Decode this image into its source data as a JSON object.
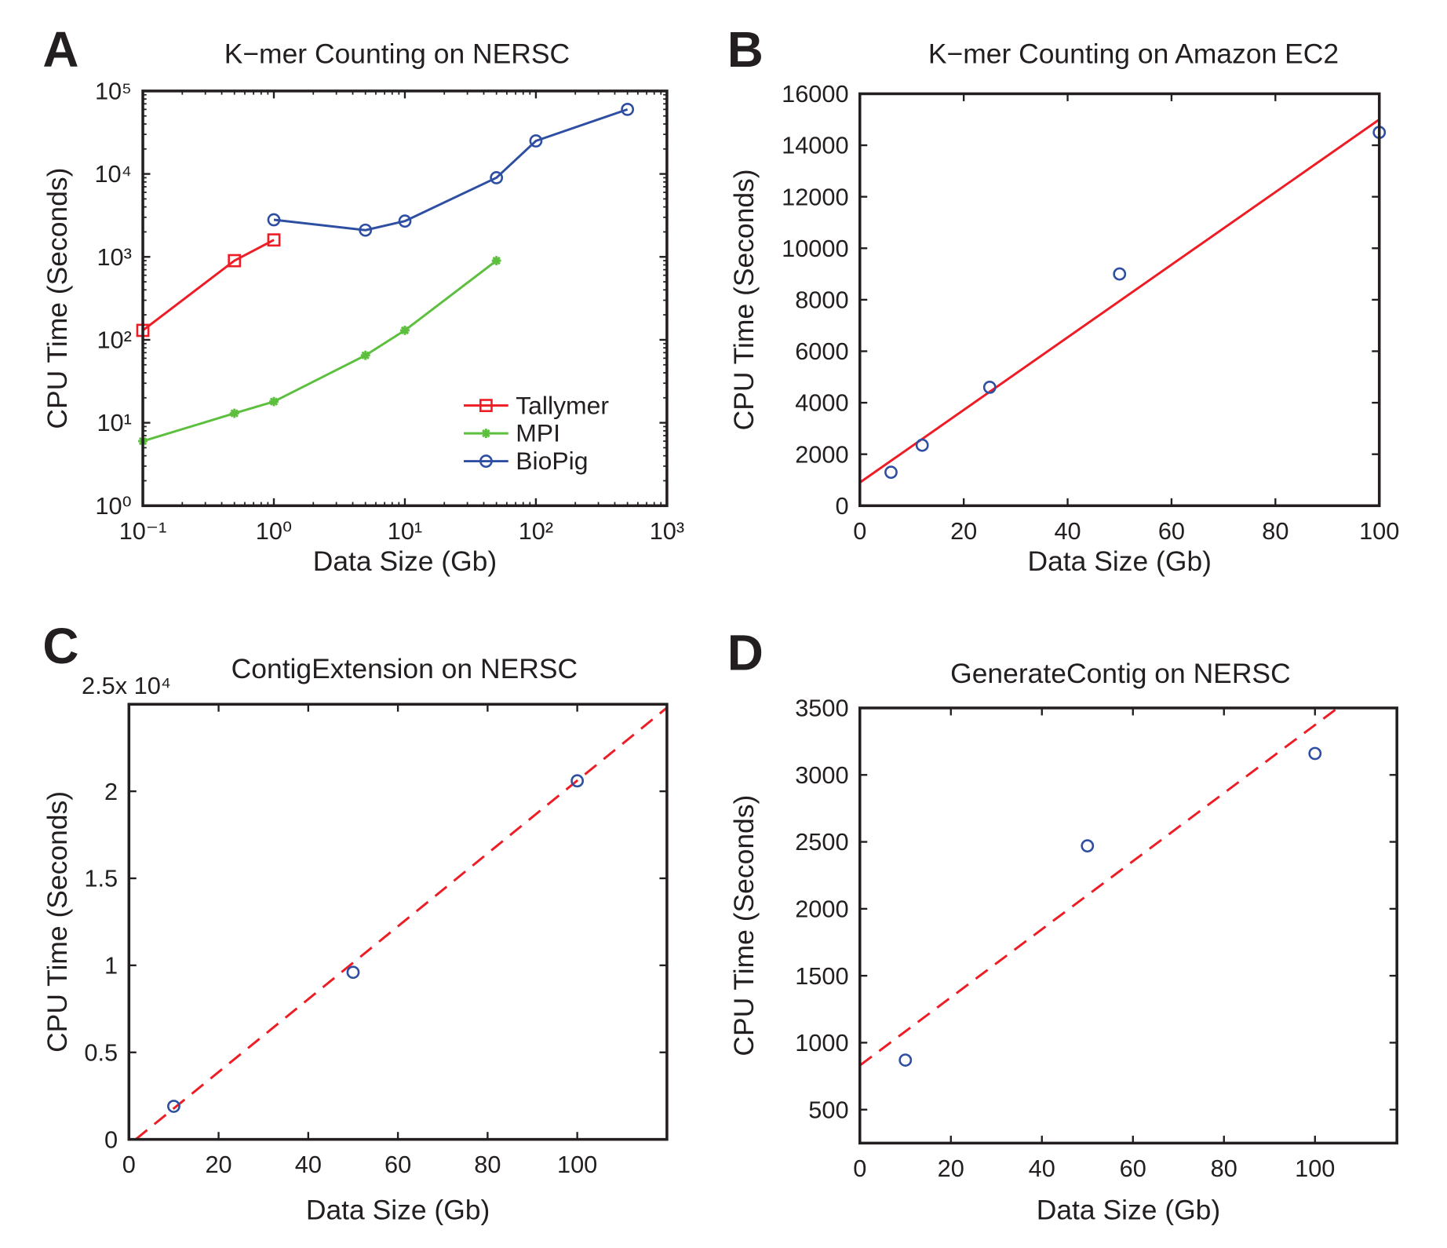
{
  "colors": {
    "red": "#ee1c24",
    "green": "#5cbf3d",
    "blue": "#2e4ea2",
    "axis": "#231f20"
  },
  "chart_data": [
    {
      "panel": "A",
      "type": "line",
      "title": "K−mer Counting on NERSC",
      "xlabel": "Data Size (Gb)",
      "ylabel": "CPU Time (Seconds)",
      "xscale": "log",
      "yscale": "log",
      "xlim": [
        0.1,
        1000
      ],
      "ylim": [
        1,
        100000
      ],
      "xticks": [
        0.1,
        1,
        10,
        100,
        1000
      ],
      "xticklabels": [
        "10⁻¹",
        "10⁰",
        "10¹",
        "10²",
        "10³"
      ],
      "yticks": [
        1,
        10,
        100,
        1000,
        10000,
        100000
      ],
      "yticklabels": [
        "10⁰",
        "10¹",
        "10²",
        "10³",
        "10⁴",
        "10⁵"
      ],
      "grid": false,
      "legend": "bottom-right",
      "series": [
        {
          "name": "Tallymer",
          "color": "#ee1c24",
          "marker": "square",
          "x": [
            0.1,
            0.5,
            1
          ],
          "y": [
            130,
            900,
            1600
          ]
        },
        {
          "name": "MPI",
          "color": "#5cbf3d",
          "marker": "asterisk",
          "x": [
            0.1,
            0.5,
            1,
            5,
            10,
            50
          ],
          "y": [
            6,
            13,
            18,
            65,
            130,
            900
          ]
        },
        {
          "name": "BioPig",
          "color": "#2e4ea2",
          "marker": "circle",
          "x": [
            1,
            5,
            10,
            50,
            100,
            500
          ],
          "y": [
            2800,
            2100,
            2700,
            9000,
            25000,
            60000
          ]
        }
      ]
    },
    {
      "panel": "B",
      "type": "scatter",
      "title": "K−mer Counting on Amazon EC2",
      "xlabel": "Data Size (Gb)",
      "ylabel": "CPU Time (Seconds)",
      "xscale": "linear",
      "yscale": "linear",
      "xlim": [
        0,
        100
      ],
      "ylim": [
        0,
        16000
      ],
      "xticks": [
        0,
        20,
        40,
        60,
        80,
        100
      ],
      "xticklabels": [
        "0",
        "20",
        "40",
        "60",
        "80",
        "100"
      ],
      "yticks": [
        0,
        2000,
        4000,
        6000,
        8000,
        10000,
        12000,
        14000,
        16000
      ],
      "yticklabels": [
        "0",
        "2000",
        "4000",
        "6000",
        "8000",
        "10000",
        "12000",
        "14000",
        "16000"
      ],
      "grid": false,
      "points": {
        "color": "#2e4ea2",
        "x": [
          6,
          12,
          25,
          50,
          100
        ],
        "y": [
          1300,
          2350,
          4600,
          9000,
          14500
        ]
      },
      "fit": {
        "color": "#ee1c24",
        "style": "solid",
        "x": [
          0,
          100
        ],
        "y": [
          900,
          15000
        ]
      }
    },
    {
      "panel": "C",
      "type": "scatter",
      "title": "ContigExtension on NERSC",
      "xlabel": "Data Size (Gb)",
      "ylabel": "CPU Time (Seconds)",
      "xscale": "linear",
      "yscale": "linear",
      "xlim": [
        0,
        120
      ],
      "ylim": [
        0,
        25000
      ],
      "xticks": [
        0,
        20,
        40,
        60,
        80,
        100
      ],
      "xticklabels": [
        "0",
        "20",
        "40",
        "60",
        "80",
        "100"
      ],
      "yticks": [
        0,
        5000,
        10000,
        15000,
        20000
      ],
      "yticklabels": [
        "0",
        "0.5",
        "1",
        "1.5",
        "2"
      ],
      "yexponent_label": "2.5x 10⁴",
      "grid": false,
      "points": {
        "color": "#2e4ea2",
        "x": [
          10,
          50,
          100
        ],
        "y": [
          1900,
          9600,
          20600
        ]
      },
      "fit": {
        "color": "#ee1c24",
        "style": "dashed",
        "x": [
          1.5,
          120
        ],
        "y": [
          0,
          24800
        ]
      }
    },
    {
      "panel": "D",
      "type": "scatter",
      "title": "GenerateContig on NERSC",
      "xlabel": "Data Size (Gb)",
      "ylabel": "CPU Time (Seconds)",
      "xscale": "linear",
      "yscale": "linear",
      "xlim": [
        0,
        118
      ],
      "ylim": [
        250,
        3500
      ],
      "xticks": [
        0,
        20,
        40,
        60,
        80,
        100
      ],
      "xticklabels": [
        "0",
        "20",
        "40",
        "60",
        "80",
        "100"
      ],
      "yticks": [
        500,
        1000,
        1500,
        2000,
        2500,
        3000,
        3500
      ],
      "yticklabels": [
        "500",
        "1000",
        "1500",
        "2000",
        "2500",
        "3000",
        "3500"
      ],
      "grid": false,
      "points": {
        "color": "#2e4ea2",
        "x": [
          10,
          50,
          100
        ],
        "y": [
          870,
          2470,
          3160
        ]
      },
      "fit": {
        "color": "#ee1c24",
        "style": "dashed",
        "x": [
          0,
          105
        ],
        "y": [
          830,
          3500
        ]
      }
    }
  ]
}
